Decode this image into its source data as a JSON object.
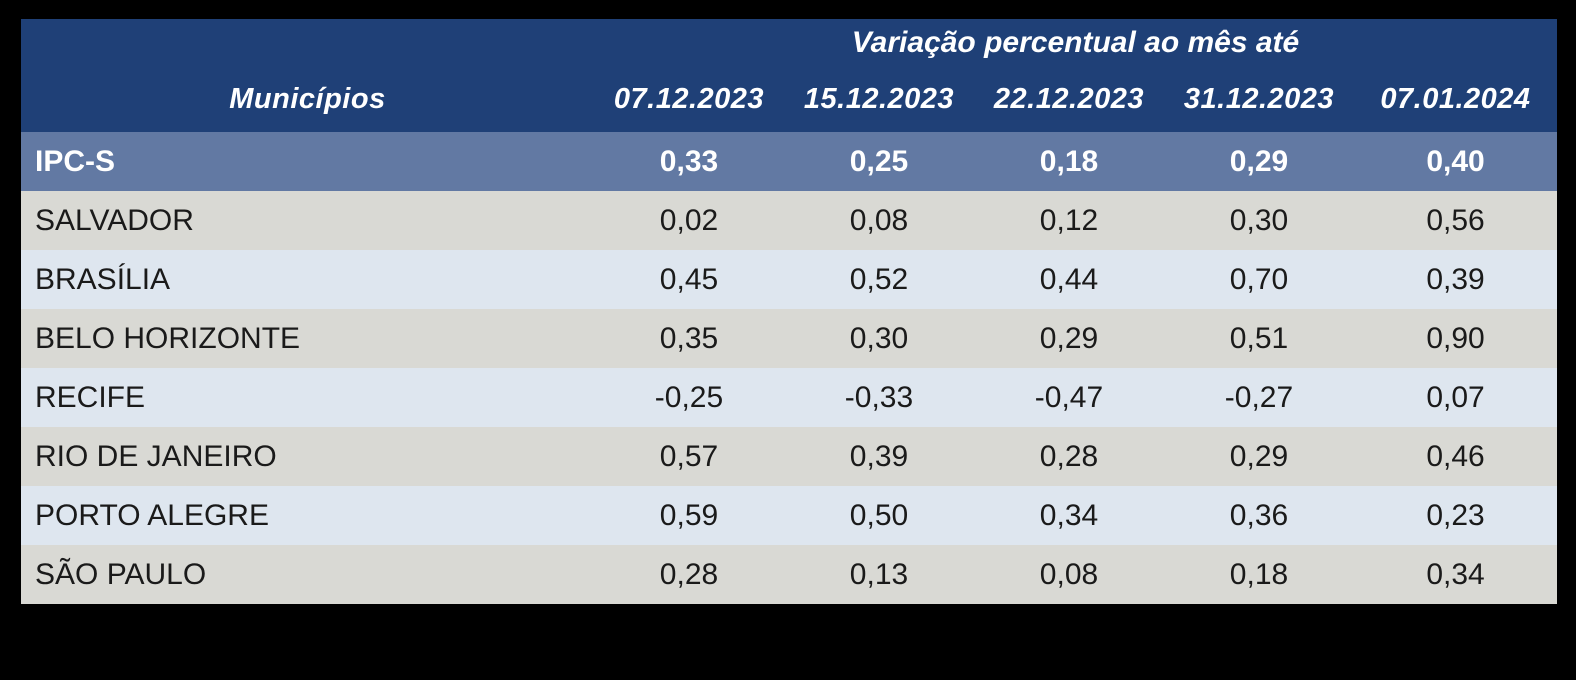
{
  "colors": {
    "page_bg": "#000000",
    "header_bg": "#1F4077",
    "summary_bg": "#6279A3",
    "row_gray": "#D9D9D4",
    "row_blue": "#DEE6EF",
    "header_text": "#FFFFFF",
    "body_text": "#1A1A1A"
  },
  "table": {
    "header": {
      "group_title": "Variação percentual ao mês até",
      "municipios_label": "Municípios",
      "date_columns": [
        "07.12.2023",
        "15.12.2023",
        "22.12.2023",
        "31.12.2023",
        "07.01.2024"
      ]
    },
    "summary_row": {
      "label": "IPC-S",
      "values": [
        "0,33",
        "0,25",
        "0,18",
        "0,29",
        "0,40"
      ]
    },
    "rows": [
      {
        "label": "SALVADOR",
        "values": [
          "0,02",
          "0,08",
          "0,12",
          "0,30",
          "0,56"
        ]
      },
      {
        "label": "BRASÍLIA",
        "values": [
          "0,45",
          "0,52",
          "0,44",
          "0,70",
          "0,39"
        ]
      },
      {
        "label": "BELO HORIZONTE",
        "values": [
          "0,35",
          "0,30",
          "0,29",
          "0,51",
          "0,90"
        ]
      },
      {
        "label": "RECIFE",
        "values": [
          "-0,25",
          "-0,33",
          "-0,47",
          "-0,27",
          "0,07"
        ]
      },
      {
        "label": "RIO DE JANEIRO",
        "values": [
          "0,57",
          "0,39",
          "0,28",
          "0,29",
          "0,46"
        ]
      },
      {
        "label": "PORTO ALEGRE",
        "values": [
          "0,59",
          "0,50",
          "0,34",
          "0,36",
          "0,23"
        ]
      },
      {
        "label": "SÃO PAULO",
        "values": [
          "0,28",
          "0,13",
          "0,08",
          "0,18",
          "0,34"
        ]
      }
    ]
  },
  "chart_data": {
    "type": "table",
    "title": "Variação percentual ao mês até",
    "row_header": "Municípios",
    "columns": [
      "07.12.2023",
      "15.12.2023",
      "22.12.2023",
      "31.12.2023",
      "07.01.2024"
    ],
    "rows": [
      {
        "name": "IPC-S",
        "values": [
          0.33,
          0.25,
          0.18,
          0.29,
          0.4
        ]
      },
      {
        "name": "SALVADOR",
        "values": [
          0.02,
          0.08,
          0.12,
          0.3,
          0.56
        ]
      },
      {
        "name": "BRASÍLIA",
        "values": [
          0.45,
          0.52,
          0.44,
          0.7,
          0.39
        ]
      },
      {
        "name": "BELO HORIZONTE",
        "values": [
          0.35,
          0.3,
          0.29,
          0.51,
          0.9
        ]
      },
      {
        "name": "RECIFE",
        "values": [
          -0.25,
          -0.33,
          -0.47,
          -0.27,
          0.07
        ]
      },
      {
        "name": "RIO DE JANEIRO",
        "values": [
          0.57,
          0.39,
          0.28,
          0.29,
          0.46
        ]
      },
      {
        "name": "PORTO ALEGRE",
        "values": [
          0.59,
          0.5,
          0.34,
          0.36,
          0.23
        ]
      },
      {
        "name": "SÃO PAULO",
        "values": [
          0.28,
          0.13,
          0.08,
          0.18,
          0.34
        ]
      }
    ],
    "layout": {
      "highlight_row": "IPC-S",
      "alternating_row_colors": true,
      "gridlines": false
    }
  }
}
